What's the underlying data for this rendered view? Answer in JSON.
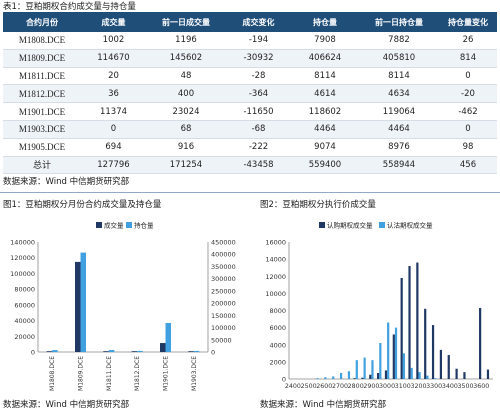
{
  "table": {
    "caption": "表1：豆粕期权合约成交量与持仓量",
    "headers": [
      "合约月份",
      "成交量",
      "前一日成交量",
      "成交变化",
      "持仓量",
      "前一日持仓量",
      "持仓量变化"
    ],
    "rows": [
      [
        "M1808.DCE",
        "1002",
        "1196",
        "-194",
        "7908",
        "7882",
        "26"
      ],
      [
        "M1809.DCE",
        "114670",
        "145602",
        "-30932",
        "406624",
        "405810",
        "814"
      ],
      [
        "M1811.DCE",
        "20",
        "48",
        "-28",
        "8114",
        "8114",
        "0"
      ],
      [
        "M1812.DCE",
        "36",
        "400",
        "-364",
        "4614",
        "4634",
        "-20"
      ],
      [
        "M1901.DCE",
        "11374",
        "23024",
        "-11650",
        "118602",
        "119064",
        "-462"
      ],
      [
        "M1903.DCE",
        "0",
        "68",
        "-68",
        "4464",
        "4464",
        "0"
      ],
      [
        "M1905.DCE",
        "694",
        "916",
        "-222",
        "9074",
        "8976",
        "98"
      ],
      [
        "总计",
        "127796",
        "171254",
        "-43458",
        "559400",
        "558944",
        "456"
      ]
    ],
    "source": "数据来源：Wind  中信期货研究部"
  },
  "colors": {
    "dark": "#1f3864",
    "light": "#41a0e0",
    "header": "#1f4e79"
  },
  "chart_data": [
    {
      "type": "bar",
      "caption": "图1：豆粕期权分月份合约成交量及持仓量",
      "categories": [
        "M1808.DCE",
        "M1809.DCE",
        "M1811.DCE",
        "M1812.DCE",
        "M1901.DCE",
        "M1903.DCE"
      ],
      "series": [
        {
          "name": "成交量",
          "axis": "left",
          "values": [
            1002,
            114670,
            20,
            36,
            11374,
            0
          ]
        },
        {
          "name": "持仓量",
          "axis": "right",
          "values": [
            7908,
            406624,
            8114,
            4614,
            118602,
            4464
          ]
        }
      ],
      "ylim_left": [
        0,
        140000
      ],
      "yticks_left": [
        0,
        20000,
        40000,
        60000,
        80000,
        100000,
        120000,
        140000
      ],
      "ylim_right": [
        0,
        450000
      ],
      "yticks_right": [
        0,
        50000,
        100000,
        150000,
        200000,
        250000,
        300000,
        350000,
        400000,
        450000
      ],
      "legend": "top-center",
      "source": "数据来源：Wind  中信期货研究部"
    },
    {
      "type": "bar",
      "caption": "图2：豆粕期权分执行价成交量",
      "categories": [
        "2400",
        "2450",
        "2500",
        "2550",
        "2600",
        "2650",
        "2700",
        "2750",
        "2800",
        "2850",
        "2900",
        "2950",
        "3000",
        "3050",
        "3100",
        "3150",
        "3200",
        "3250",
        "3300",
        "3350",
        "3400",
        "3450",
        "3500",
        "3550",
        "3600",
        "3650"
      ],
      "xticks": [
        "2400",
        "2500",
        "2600",
        "2700",
        "2800",
        "2900",
        "3000",
        "3100",
        "3200",
        "3300",
        "3400",
        "3500",
        "3600"
      ],
      "series": [
        {
          "name": "认购期权成交量",
          "values": [
            0,
            0,
            0,
            0,
            0,
            0,
            0,
            0,
            100,
            150,
            500,
            700,
            1000,
            5200,
            11800,
            13200,
            13600,
            8200,
            6300,
            3400,
            2800,
            1200,
            800,
            0,
            8300,
            1100
          ]
        },
        {
          "name": "认沽期权成交量",
          "values": [
            0,
            0,
            0,
            100,
            200,
            300,
            700,
            900,
            2200,
            2500,
            2200,
            4200,
            6600,
            6000,
            3000,
            1300,
            800,
            400,
            100,
            0,
            0,
            0,
            0,
            0,
            0,
            0
          ]
        }
      ],
      "ylim": [
        0,
        16000
      ],
      "yticks": [
        0,
        2000,
        4000,
        6000,
        8000,
        10000,
        12000,
        14000,
        16000
      ],
      "legend": "top-center",
      "source": "数据来源：Wind  中信期货研究部"
    }
  ]
}
